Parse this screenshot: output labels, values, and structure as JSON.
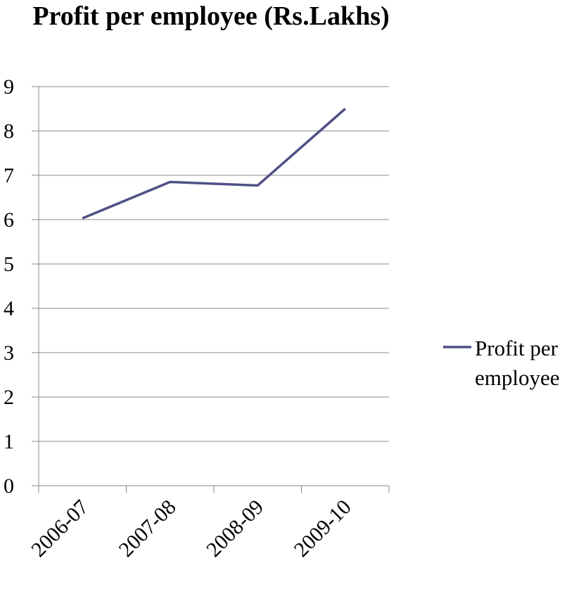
{
  "chart_data": {
    "type": "line",
    "title": "Profit per employee (Rs.Lakhs)",
    "categories": [
      "2006-07",
      "2007-08",
      "2008-09",
      "2009-10"
    ],
    "series": [
      {
        "name": "Profit per employee",
        "color": "#4f5186",
        "values": [
          6.03,
          6.85,
          6.77,
          8.5
        ]
      }
    ],
    "ylim": [
      0,
      9
    ],
    "yticks": [
      0,
      1,
      2,
      3,
      4,
      5,
      6,
      7,
      8,
      9
    ],
    "grid": true,
    "legend": "right"
  }
}
